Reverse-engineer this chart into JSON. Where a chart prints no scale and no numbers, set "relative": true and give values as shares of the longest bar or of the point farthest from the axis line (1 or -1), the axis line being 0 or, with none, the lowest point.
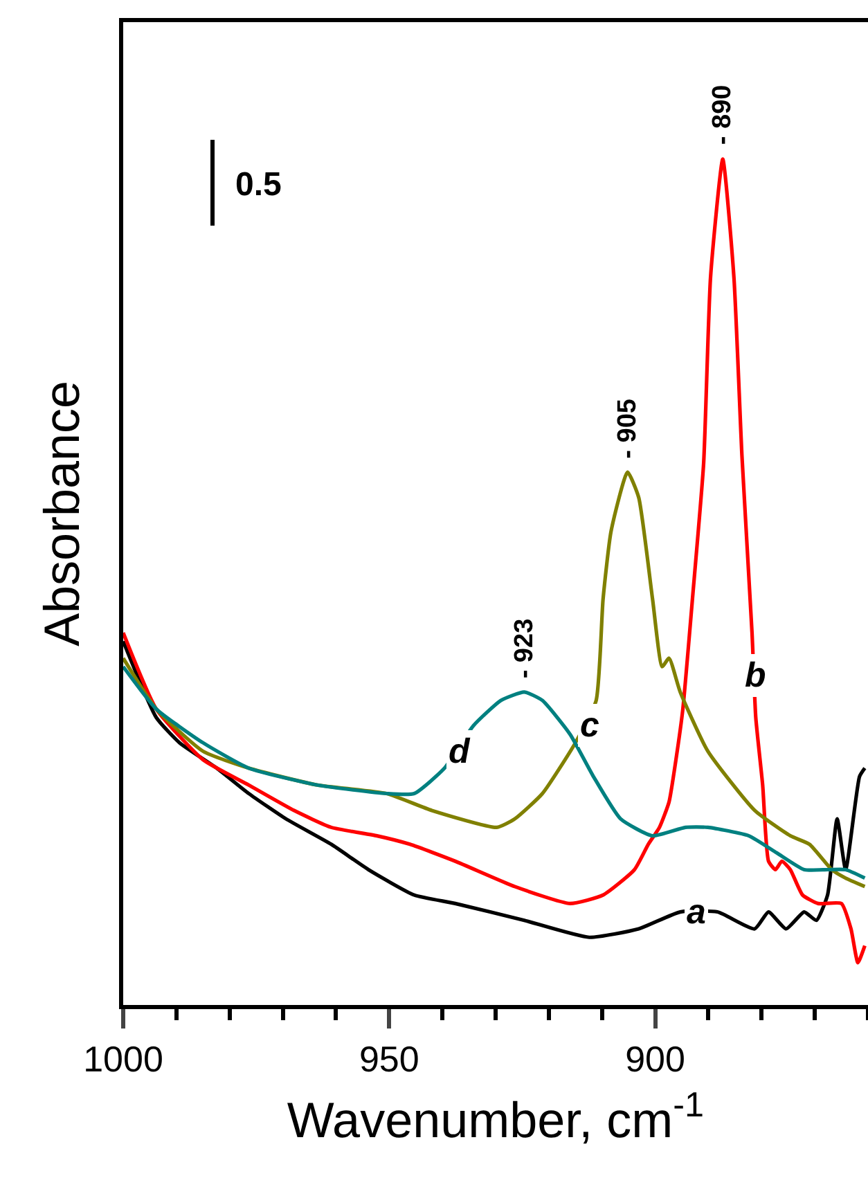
{
  "chart_data": {
    "type": "line",
    "relative": true,
    "xlabel": "Wavenumber, cm$^{-1}$",
    "ylabel": "Absorbance",
    "xlim": [
      1000,
      860
    ],
    "xticks": [
      1000,
      950,
      900
    ],
    "series": [
      {
        "color": "#000000",
        "x": [
          1000,
          993.8,
          989.4,
          982.4,
          976.4,
          969.4,
          960.9,
          953.9,
          945.3,
          937.6,
          924.6,
          912.4,
          903.1,
          895.3,
          888.3,
          881.3,
          878.7,
          875.4,
          872.0,
          869.7,
          867.6,
          865.8,
          864.2,
          861.6,
          860.6
        ],
        "values": [
          0.43,
          0.34,
          0.31,
          0.28,
          0.25,
          0.22,
          0.19,
          0.16,
          0.13,
          0.12,
          0.1,
          0.08,
          0.09,
          0.11,
          0.11,
          0.09,
          0.11,
          0.09,
          0.11,
          0.1,
          0.13,
          0.22,
          0.16,
          0.27,
          0.28
        ]
      },
      {
        "color": "#ff0000",
        "x": [
          1000,
          993.8,
          985.0,
          976.4,
          967.9,
          960.9,
          952.3,
          946.1,
          937.6,
          926.4,
          916.0,
          909.8,
          903.9,
          901.3,
          899.2,
          897.4,
          896.1,
          894.8,
          893.0,
          890.9,
          889.6,
          887.3,
          885.2,
          883.7,
          881.8,
          881.1,
          879.8,
          878.7,
          877.4,
          876.2,
          874.6,
          872.3,
          869.4,
          865.0,
          863.2,
          861.9,
          860.6
        ],
        "values": [
          0.44,
          0.35,
          0.29,
          0.26,
          0.23,
          0.21,
          0.2,
          0.19,
          0.17,
          0.14,
          0.12,
          0.13,
          0.16,
          0.19,
          0.21,
          0.24,
          0.29,
          0.35,
          0.48,
          0.64,
          0.86,
          1,
          0.86,
          0.65,
          0.44,
          0.34,
          0.26,
          0.17,
          0.16,
          0.17,
          0.16,
          0.13,
          0.12,
          0.12,
          0.09,
          0.05,
          0.07
        ]
      },
      {
        "color": "#808000",
        "x": [
          1000,
          993.8,
          985.0,
          976.4,
          963.5,
          950.5,
          942.0,
          929.8,
          926.4,
          921.2,
          915.0,
          911.1,
          909.8,
          908.3,
          905.2,
          903.1,
          900.5,
          898.7,
          897.4,
          895.3,
          890.1,
          881.3,
          874.6,
          871.0,
          866.8,
          864.2,
          860.6
        ],
        "values": [
          0.41,
          0.35,
          0.3,
          0.28,
          0.26,
          0.25,
          0.23,
          0.21,
          0.22,
          0.25,
          0.31,
          0.36,
          0.48,
          0.56,
          0.63,
          0.6,
          0.48,
          0.4,
          0.41,
          0.37,
          0.3,
          0.23,
          0.2,
          0.19,
          0.16,
          0.15,
          0.14
        ]
      },
      {
        "color": "#008080",
        "x": [
          1000,
          993.8,
          985.0,
          976.4,
          963.5,
          950.5,
          945.3,
          939.6,
          934.2,
          929.0,
          924.6,
          921.2,
          916.0,
          911.6,
          906.5,
          900.5,
          894.3,
          890.1,
          882.4,
          877.2,
          872.0,
          867.6,
          864.2,
          860.6
        ],
        "values": [
          0.4,
          0.35,
          0.31,
          0.28,
          0.26,
          0.25,
          0.25,
          0.28,
          0.33,
          0.36,
          0.37,
          0.36,
          0.32,
          0.27,
          0.22,
          0.2,
          0.21,
          0.21,
          0.2,
          0.18,
          0.16,
          0.16,
          0.16,
          0.15
        ]
      }
    ],
    "annotations": [
      {
        "text": "- 890",
        "x": 887.3,
        "y": 1
      },
      {
        "text": "- 905",
        "x": 905.2,
        "y": 0.63
      },
      {
        "text": "- 923",
        "x": 924.6,
        "y": 0.37
      },
      {
        "text": "a",
        "x": 892.2,
        "y": 0.11
      },
      {
        "text": "b",
        "x": 881.1,
        "y": 0.39
      },
      {
        "text": "c",
        "x": 912.2,
        "y": 0.33
      },
      {
        "text": "d",
        "x": 936.8,
        "y": 0.3
      },
      "0.5"
    ]
  }
}
